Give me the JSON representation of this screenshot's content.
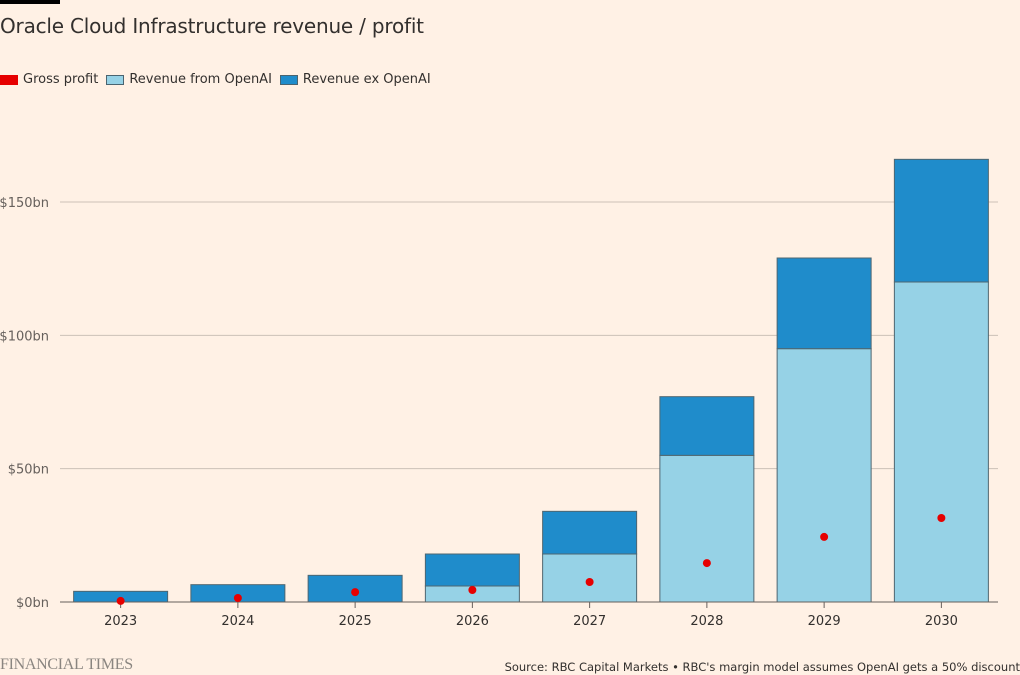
{
  "brand": "FINANCIAL TIMES",
  "source": "Source: RBC Capital Markets • RBC's margin model assumes OpenAI gets a 50% discount",
  "colors": {
    "background": "#fff1e5",
    "gross_profit": "#e60000",
    "revenue_openai": "#96d2e6",
    "revenue_ex_openai": "#1f8ccb",
    "bar_stroke": "#4f6670",
    "gridline": "#ccc1b7",
    "axis": "#66605c"
  },
  "chart_data": {
    "type": "bar",
    "stacked": true,
    "title": "Oracle Cloud Infrastructure revenue / profit",
    "xlabel": "",
    "ylabel": "",
    "ylim": [
      0,
      170
    ],
    "yticks": [
      0,
      50,
      100,
      150
    ],
    "ytick_labels": [
      "$0bn",
      "$50bn",
      "$100bn",
      "$150bn"
    ],
    "grid": true,
    "legend_position": "top-left",
    "legend": [
      "Gross profit",
      "Revenue from OpenAI",
      "Revenue ex OpenAI"
    ],
    "categories": [
      "2023",
      "2024",
      "2025",
      "2026",
      "2027",
      "2028",
      "2029",
      "2030"
    ],
    "series": [
      {
        "name": "Revenue from OpenAI",
        "kind": "bar",
        "values": [
          0,
          0,
          0,
          6,
          18,
          55,
          95,
          120
        ]
      },
      {
        "name": "Revenue ex OpenAI",
        "kind": "bar",
        "values": [
          4,
          6.5,
          10,
          12,
          16,
          22,
          34,
          46
        ]
      },
      {
        "name": "Gross profit",
        "kind": "point",
        "values": [
          0.4,
          1.5,
          3.7,
          4.5,
          7.5,
          14.6,
          24.4,
          31.5
        ]
      }
    ]
  }
}
